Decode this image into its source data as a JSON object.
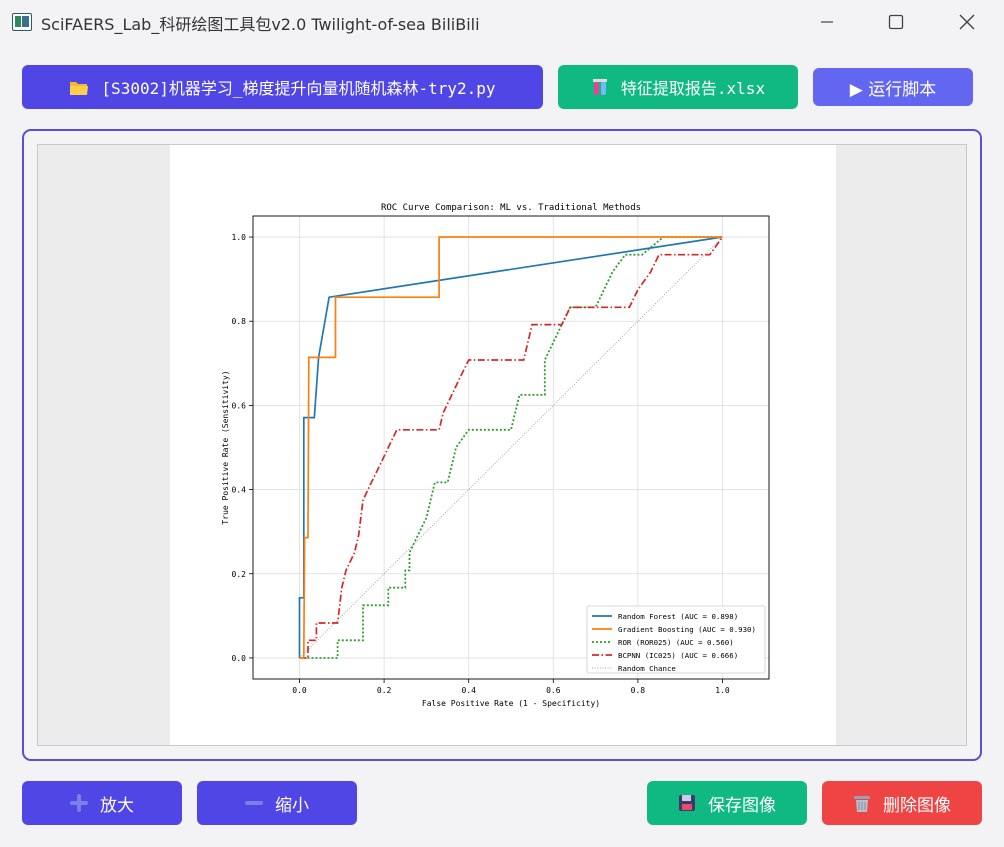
{
  "window": {
    "title": "SciFAERS_Lab_科研绘图工具包v2.0 Twilight-of-sea BiliBili"
  },
  "toolbar": {
    "script_file_label": "[S3002]机器学习_梯度提升向量机随机森林-try2.py",
    "excel_file_label": "特征提取报告.xlsx",
    "run_label": "▶ 运行脚本"
  },
  "bottom": {
    "zoom_in_label": "放大",
    "zoom_out_label": "缩小",
    "save_label": "保存图像",
    "delete_label": "删除图像"
  },
  "colors": {
    "primary": "#4f46e5",
    "success": "#10b981",
    "accent": "#6366f1",
    "danger": "#ef4444",
    "frame_border": "#5a4fd6"
  },
  "chart_data": {
    "type": "line",
    "title": "ROC Curve Comparison: ML vs. Traditional Methods",
    "xlabel": "False Positive Rate (1 - Specificity)",
    "ylabel": "True Positive Rate (Sensitivity)",
    "xlim": [
      -0.11,
      1.11
    ],
    "ylim": [
      -0.05,
      1.05
    ],
    "xticks": [
      "0.0",
      "0.2",
      "0.4",
      "0.6",
      "0.8",
      "1.0"
    ],
    "yticks": [
      "0.0",
      "0.2",
      "0.4",
      "0.6",
      "0.8",
      "1.0"
    ],
    "grid": true,
    "legend_position": "lower-right",
    "series": [
      {
        "name": "Random Forest (AUC = 0.898)",
        "color": "#1f77b4",
        "style": "solid",
        "points": [
          [
            0,
            0
          ],
          [
            0,
            0.143
          ],
          [
            0.01,
            0.143
          ],
          [
            0.01,
            0.571
          ],
          [
            0.035,
            0.571
          ],
          [
            0.045,
            0.714
          ],
          [
            0.07,
            0.857
          ],
          [
            1,
            1
          ]
        ]
      },
      {
        "name": "Gradient Boosting (AUC = 0.930)",
        "color": "#ff7f0e",
        "style": "solid",
        "points": [
          [
            0,
            0
          ],
          [
            0.01,
            0
          ],
          [
            0.012,
            0.286
          ],
          [
            0.02,
            0.286
          ],
          [
            0.022,
            0.714
          ],
          [
            0.085,
            0.714
          ],
          [
            0.085,
            0.857
          ],
          [
            0.33,
            0.857
          ],
          [
            0.33,
            1
          ],
          [
            1,
            1
          ]
        ]
      },
      {
        "name": "ROR (ROR025) (AUC = 0.560)",
        "color": "#2ca02c",
        "style": "dotted",
        "points": [
          [
            0,
            0
          ],
          [
            0.09,
            0
          ],
          [
            0.09,
            0.042
          ],
          [
            0.15,
            0.042
          ],
          [
            0.15,
            0.125
          ],
          [
            0.21,
            0.125
          ],
          [
            0.21,
            0.167
          ],
          [
            0.25,
            0.167
          ],
          [
            0.25,
            0.208
          ],
          [
            0.26,
            0.208
          ],
          [
            0.26,
            0.25
          ],
          [
            0.28,
            0.292
          ],
          [
            0.3,
            0.333
          ],
          [
            0.31,
            0.375
          ],
          [
            0.32,
            0.417
          ],
          [
            0.35,
            0.417
          ],
          [
            0.36,
            0.458
          ],
          [
            0.37,
            0.5
          ],
          [
            0.4,
            0.542
          ],
          [
            0.5,
            0.542
          ],
          [
            0.51,
            0.583
          ],
          [
            0.52,
            0.625
          ],
          [
            0.58,
            0.625
          ],
          [
            0.58,
            0.708
          ],
          [
            0.6,
            0.75
          ],
          [
            0.62,
            0.792
          ],
          [
            0.64,
            0.833
          ],
          [
            0.7,
            0.833
          ],
          [
            0.72,
            0.875
          ],
          [
            0.74,
            0.917
          ],
          [
            0.77,
            0.958
          ],
          [
            0.81,
            0.958
          ],
          [
            0.86,
            1
          ],
          [
            1,
            1
          ]
        ]
      },
      {
        "name": "BCPNN (IC025) (AUC = 0.666)",
        "color": "#d62728",
        "style": "dashdot",
        "points": [
          [
            0,
            0
          ],
          [
            0.02,
            0
          ],
          [
            0.02,
            0.042
          ],
          [
            0.04,
            0.042
          ],
          [
            0.04,
            0.083
          ],
          [
            0.09,
            0.083
          ],
          [
            0.1,
            0.167
          ],
          [
            0.11,
            0.208
          ],
          [
            0.13,
            0.25
          ],
          [
            0.14,
            0.292
          ],
          [
            0.15,
            0.375
          ],
          [
            0.17,
            0.417
          ],
          [
            0.19,
            0.458
          ],
          [
            0.21,
            0.5
          ],
          [
            0.23,
            0.542
          ],
          [
            0.33,
            0.542
          ],
          [
            0.34,
            0.583
          ],
          [
            0.36,
            0.625
          ],
          [
            0.38,
            0.667
          ],
          [
            0.4,
            0.708
          ],
          [
            0.53,
            0.708
          ],
          [
            0.54,
            0.75
          ],
          [
            0.55,
            0.792
          ],
          [
            0.62,
            0.792
          ],
          [
            0.64,
            0.833
          ],
          [
            0.78,
            0.833
          ],
          [
            0.8,
            0.875
          ],
          [
            0.83,
            0.917
          ],
          [
            0.85,
            0.958
          ],
          [
            0.97,
            0.958
          ],
          [
            1,
            1
          ]
        ]
      },
      {
        "name": "Random Chance",
        "color": "#888888",
        "style": "thin-dotted",
        "points": [
          [
            0,
            0
          ],
          [
            1,
            1
          ]
        ]
      }
    ]
  }
}
